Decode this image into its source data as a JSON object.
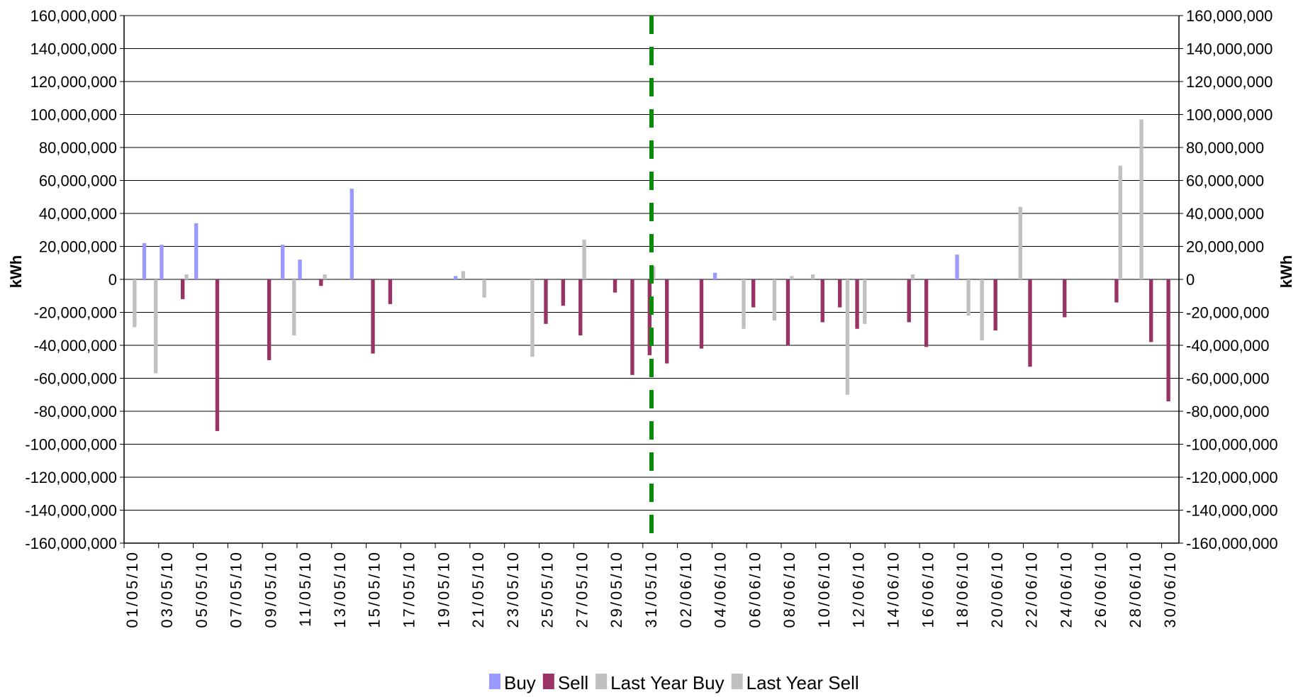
{
  "chart_data": {
    "type": "bar",
    "ylabel": "kWh",
    "ylabel_right": "kWh",
    "ylim": [
      -160000000,
      160000000
    ],
    "ytick_step": 20000000,
    "y_ticks": [
      "160,000,000",
      "140,000,000",
      "120,000,000",
      "100,000,000",
      "80,000,000",
      "60,000,000",
      "40,000,000",
      "20,000,000",
      "0",
      "-20,000,000",
      "-40,000,000",
      "-60,000,000",
      "-80,000,000",
      "-100,000,000",
      "-120,000,000",
      "-140,000,000",
      "-160,000,000"
    ],
    "grid": true,
    "legend_position": "bottom",
    "marker": {
      "category": "31/05/10",
      "color": "#0a8a0a",
      "style": "dashed"
    },
    "categories": [
      "01/05/10",
      "02/05/10",
      "03/05/10",
      "04/05/10",
      "05/05/10",
      "06/05/10",
      "07/05/10",
      "08/05/10",
      "09/05/10",
      "10/05/10",
      "11/05/10",
      "12/05/10",
      "13/05/10",
      "14/05/10",
      "15/05/10",
      "16/05/10",
      "17/05/10",
      "18/05/10",
      "19/05/10",
      "20/05/10",
      "21/05/10",
      "22/05/10",
      "23/05/10",
      "24/05/10",
      "25/05/10",
      "26/05/10",
      "27/05/10",
      "28/05/10",
      "29/05/10",
      "30/05/10",
      "31/05/10",
      "01/06/10",
      "02/06/10",
      "03/06/10",
      "04/06/10",
      "05/06/10",
      "06/06/10",
      "07/06/10",
      "08/06/10",
      "09/06/10",
      "10/06/10",
      "11/06/10",
      "12/06/10",
      "13/06/10",
      "14/06/10",
      "15/06/10",
      "16/06/10",
      "17/06/10",
      "18/06/10",
      "19/06/10",
      "20/06/10",
      "21/06/10",
      "22/06/10",
      "23/06/10",
      "24/06/10",
      "25/06/10",
      "26/06/10",
      "27/06/10",
      "28/06/10",
      "29/06/10",
      "30/06/10"
    ],
    "shown_xticks": [
      "01/05/10",
      "03/05/10",
      "05/05/10",
      "07/05/10",
      "09/05/10",
      "11/05/10",
      "13/05/10",
      "15/05/10",
      "17/05/10",
      "19/05/10",
      "21/05/10",
      "23/05/10",
      "25/05/10",
      "27/05/10",
      "29/05/10",
      "31/05/10",
      "02/06/10",
      "04/06/10",
      "06/06/10",
      "08/06/10",
      "10/06/10",
      "12/06/10",
      "14/06/10",
      "16/06/10",
      "18/06/10",
      "20/06/10",
      "22/06/10",
      "24/06/10",
      "26/06/10",
      "28/06/10",
      "30/06/10"
    ],
    "series": [
      {
        "name": "Buy",
        "color": "#9999ff",
        "values": [
          0,
          22000000,
          21000000,
          0,
          34000000,
          0,
          0,
          0,
          0,
          21000000,
          12000000,
          0,
          0,
          55000000,
          0,
          0,
          0,
          0,
          0,
          2000000,
          0,
          0,
          0,
          0,
          0,
          0,
          0,
          0,
          0,
          0,
          0,
          0,
          0,
          0,
          4000000,
          0,
          0,
          0,
          0,
          0,
          0,
          0,
          0,
          0,
          0,
          0,
          0,
          0,
          15000000,
          0,
          0,
          0,
          0,
          0,
          0,
          0,
          0,
          0,
          0,
          0,
          0
        ]
      },
      {
        "name": "Sell",
        "color": "#993366",
        "values": [
          0,
          0,
          0,
          -12000000,
          0,
          -92000000,
          0,
          0,
          -49000000,
          0,
          0,
          -4000000,
          0,
          0,
          -45000000,
          -15000000,
          0,
          0,
          0,
          0,
          0,
          0,
          0,
          0,
          -27000000,
          -16000000,
          -34000000,
          0,
          -8000000,
          -58000000,
          -46000000,
          -51000000,
          0,
          -42000000,
          0,
          0,
          -17000000,
          0,
          -40000000,
          0,
          -26000000,
          -17000000,
          -30000000,
          0,
          0,
          -26000000,
          -41000000,
          0,
          0,
          0,
          -31000000,
          0,
          -53000000,
          0,
          -23000000,
          0,
          0,
          -14000000,
          0,
          -38000000,
          -74000000
        ]
      },
      {
        "name": "Last Year Buy",
        "color": "#c0c0c0",
        "values": [
          -29000000,
          0,
          0,
          3000000,
          0,
          0,
          0,
          0,
          0,
          0,
          0,
          3000000,
          0,
          0,
          0,
          0,
          0,
          0,
          0,
          5000000,
          0,
          0,
          0,
          -47000000,
          0,
          0,
          24000000,
          0,
          0,
          0,
          8000000,
          0,
          0,
          0,
          0,
          0,
          0,
          -25000000,
          2000000,
          0,
          0,
          0,
          0,
          0,
          0,
          3000000,
          0,
          0,
          0,
          -37000000,
          0,
          0,
          0,
          0,
          0,
          0,
          0,
          69000000,
          0,
          0,
          0
        ]
      },
      {
        "name": "Last Year Sell",
        "color": "#c0c0c0",
        "values": [
          0,
          -57000000,
          0,
          0,
          0,
          0,
          0,
          0,
          0,
          -34000000,
          0,
          0,
          0,
          0,
          0,
          0,
          0,
          0,
          0,
          0,
          -11000000,
          0,
          0,
          0,
          0,
          0,
          0,
          0,
          0,
          0,
          0,
          0,
          0,
          0,
          0,
          -30000000,
          0,
          0,
          0,
          3000000,
          0,
          -70000000,
          -27000000,
          0,
          0,
          0,
          0,
          0,
          -22000000,
          0,
          0,
          44000000,
          0,
          0,
          0,
          0,
          0,
          0,
          97000000,
          0,
          0
        ]
      }
    ]
  }
}
